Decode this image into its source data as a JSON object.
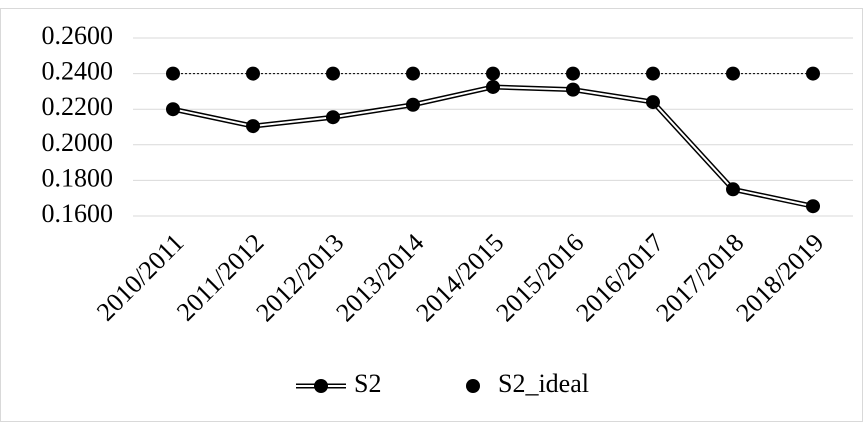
{
  "chart_data": {
    "type": "line",
    "categories": [
      "2010/2011",
      "2011/2012",
      "2012/2013",
      "2013/2014",
      "2014/2015",
      "2015/2016",
      "2016/2017",
      "2017/2018",
      "2018/2019"
    ],
    "series": [
      {
        "name": "S2",
        "color": "#000000",
        "values": [
          0.22,
          0.2105,
          0.2155,
          0.2225,
          0.2325,
          0.231,
          0.224,
          0.175,
          0.1655
        ]
      },
      {
        "name": "S2_ideal",
        "color": "#000000",
        "values": [
          0.24,
          0.24,
          0.24,
          0.24,
          0.24,
          0.24,
          0.24,
          0.24,
          0.24
        ]
      }
    ],
    "ylim": [
      0.16,
      0.26
    ],
    "yticks": [
      {
        "value": 0.16,
        "label": "0.1600"
      },
      {
        "value": 0.18,
        "label": "0.1800"
      },
      {
        "value": 0.2,
        "label": "0.2000"
      },
      {
        "value": 0.22,
        "label": "0.2200"
      },
      {
        "value": 0.24,
        "label": "0.2400"
      },
      {
        "value": 0.26,
        "label": "0.2600"
      }
    ],
    "grid": true,
    "legend": "bottom"
  }
}
